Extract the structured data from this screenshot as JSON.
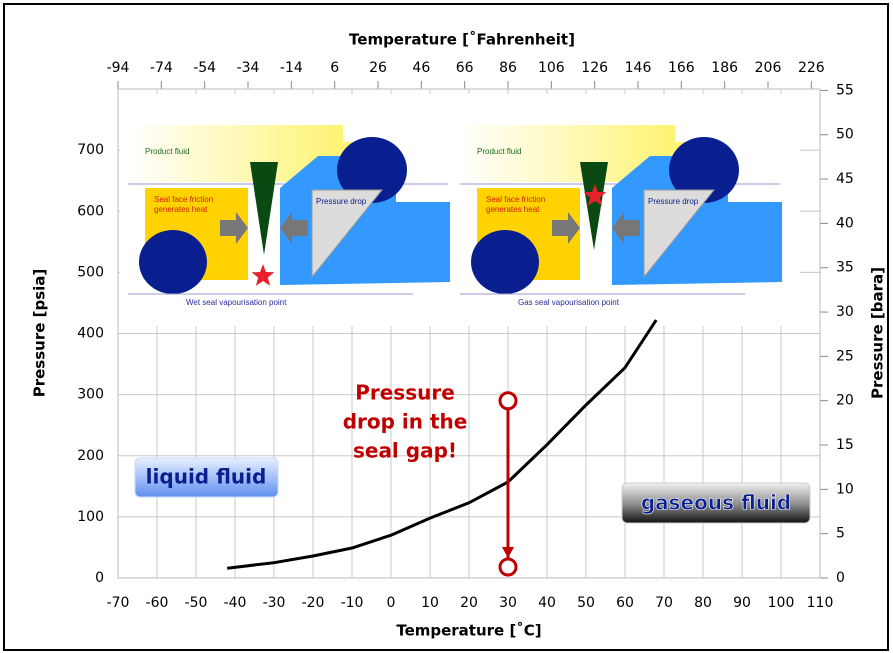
{
  "chart_data": {
    "type": "line",
    "xlabel": "Temperature [˚C]",
    "x2label": "Temperature [˚Fahrenheit]",
    "ylabel": "Pressure [psia]",
    "y2label": "Pressure [bara]",
    "xlim": [
      -70,
      110
    ],
    "xticks": [
      -70,
      -60,
      -50,
      -40,
      -30,
      -20,
      -10,
      0,
      10,
      20,
      30,
      40,
      50,
      60,
      70,
      80,
      90,
      100,
      110
    ],
    "x2lim": [
      -94,
      230
    ],
    "x2ticks": [
      -94,
      -74,
      -54,
      -34,
      -14,
      6,
      26,
      46,
      66,
      86,
      106,
      126,
      146,
      166,
      186,
      206,
      226
    ],
    "ylim": [
      0,
      800
    ],
    "yticks": [
      0,
      100,
      200,
      300,
      400,
      500,
      600,
      700
    ],
    "y2lim": [
      0,
      55.16
    ],
    "y2ticks": [
      0,
      5,
      10,
      15,
      20,
      25,
      30,
      35,
      40,
      45,
      50,
      55
    ],
    "grid": true,
    "x": [
      -42,
      -30,
      -20,
      -10,
      0,
      10,
      20,
      30,
      40,
      50,
      60,
      68
    ],
    "series": [
      {
        "color": "#000000",
        "values": [
          16,
          25,
          36,
          49,
          70,
          98,
          123,
          157,
          218,
          283,
          344,
          422
        ]
      }
    ],
    "pressure_drop": {
      "x": 30,
      "values": [
        290,
        18
      ],
      "color": "#c00000"
    },
    "annotation": [
      "Pressure",
      "drop in the",
      "seal gap!"
    ],
    "region_labels": [
      "liquid fluid",
      "gaseous fluid"
    ],
    "diagrams": [
      {
        "product": "Product fluid",
        "heat": [
          "Seal face friction",
          "generates heat"
        ],
        "drop": "Pressure drop",
        "caption": "Wet seal vapourisation point"
      },
      {
        "product": "Product fluid",
        "heat": [
          "Seal face friction",
          "generates heat"
        ],
        "drop": "Pressure drop",
        "caption": "Gas seal vapourisation point"
      }
    ]
  }
}
